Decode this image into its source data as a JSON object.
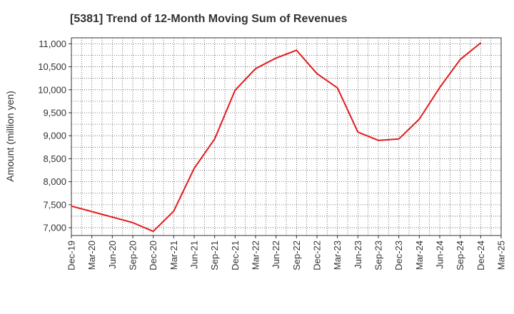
{
  "chart_data": {
    "type": "line",
    "title": "[5381]  Trend of 12-Month Moving Sum of Revenues",
    "ylabel": "Amount (million yen)",
    "xlabel": "",
    "x_ticks": [
      "Dec-19",
      "Mar-20",
      "Jun-20",
      "Sep-20",
      "Dec-20",
      "Mar-21",
      "Jun-21",
      "Sep-21",
      "Dec-21",
      "Mar-22",
      "Jun-22",
      "Sep-22",
      "Dec-22",
      "Mar-23",
      "Jun-23",
      "Sep-23",
      "Dec-23",
      "Mar-24",
      "Jun-24",
      "Sep-24",
      "Dec-24",
      "Mar-25"
    ],
    "y_ticks": [
      "7,000",
      "7,500",
      "8,000",
      "8,500",
      "9,000",
      "9,500",
      "10,000",
      "10,500",
      "11,000"
    ],
    "y_tick_values": [
      7000,
      7500,
      8000,
      8500,
      9000,
      9500,
      10000,
      10500,
      11000
    ],
    "ylim": [
      6830,
      11130
    ],
    "grid": true,
    "color": "#e31a1c",
    "series": [
      {
        "name": "",
        "x": [
          "Dec-19",
          "Mar-20",
          "Jun-20",
          "Sep-20",
          "Dec-20",
          "Mar-21",
          "Jun-21",
          "Sep-21",
          "Dec-21",
          "Mar-22",
          "Jun-22",
          "Sep-22",
          "Dec-22",
          "Mar-23",
          "Jun-23",
          "Sep-23",
          "Dec-23",
          "Mar-24",
          "Jun-24",
          "Sep-24",
          "Dec-24"
        ],
        "values": [
          7470,
          7350,
          7230,
          7110,
          6920,
          7360,
          8290,
          8930,
          9990,
          10460,
          10690,
          10860,
          10350,
          10040,
          9080,
          8900,
          8930,
          9360,
          10050,
          10660,
          11020
        ]
      }
    ]
  }
}
